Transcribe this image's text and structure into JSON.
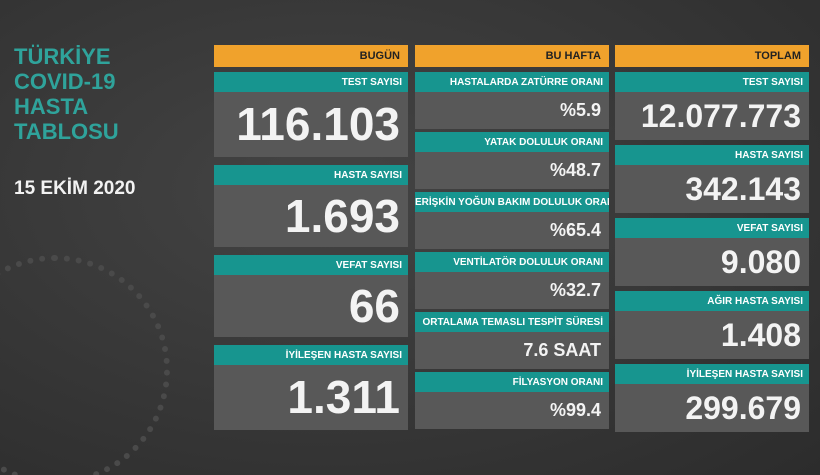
{
  "header": {
    "title_lines": [
      "TÜRKİYE",
      "COVID-19",
      "HASTA",
      "TABLOSU"
    ],
    "date": "15 EKİM 2020"
  },
  "columns": [
    {
      "title": "BUGÜN",
      "cells": [
        {
          "label": "TEST SAYISI",
          "value": "116.103"
        },
        {
          "label": "HASTA SAYISI",
          "value": "1.693"
        },
        {
          "label": "VEFAT SAYISI",
          "value": "66"
        },
        {
          "label": "İYİLEŞEN HASTA SAYISI",
          "value": "1.311"
        }
      ]
    },
    {
      "title": "BU HAFTA",
      "cells": [
        {
          "label": "HASTALARDA ZATÜRRE ORANI",
          "value": "%5.9"
        },
        {
          "label": "YATAK DOLULUK ORANI",
          "value": "%48.7"
        },
        {
          "label": "ERİŞKİN YOĞUN BAKIM DOLULUK ORANI",
          "value": "%65.4"
        },
        {
          "label": "VENTİLATÖR DOLULUK ORANI",
          "value": "%32.7"
        },
        {
          "label": "ORTALAMA TEMASLI TESPİT SÜRESİ",
          "value": "7.6 SAAT"
        },
        {
          "label": "FİLYASYON ORANI",
          "value": "%99.4"
        }
      ]
    },
    {
      "title": "TOPLAM",
      "cells": [
        {
          "label": "TEST SAYISI",
          "value": "12.077.773"
        },
        {
          "label": "HASTA SAYISI",
          "value": "342.143"
        },
        {
          "label": "VEFAT SAYISI",
          "value": "9.080"
        },
        {
          "label": "AĞIR HASTA SAYISI",
          "value": "1.408"
        },
        {
          "label": "İYİLEŞEN HASTA SAYISI",
          "value": "299.679"
        }
      ]
    }
  ]
}
